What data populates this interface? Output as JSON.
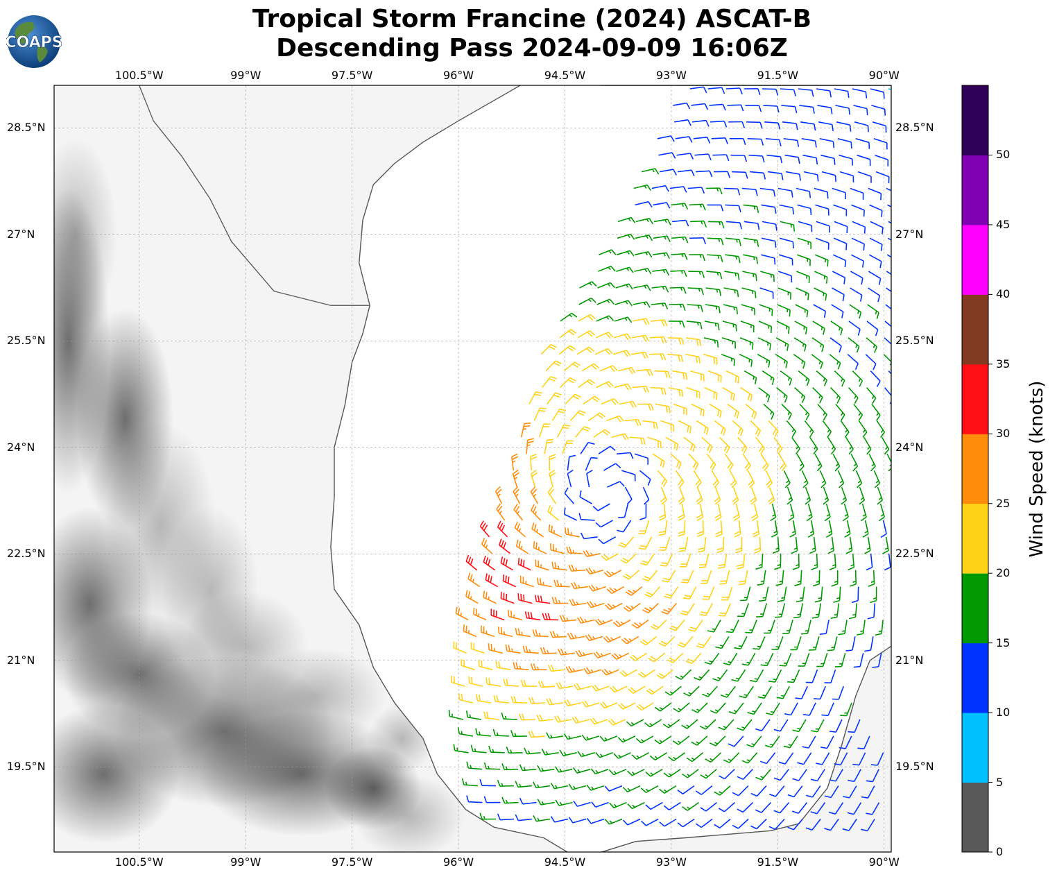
{
  "title": {
    "line1": "Tropical Storm Francine (2024) ASCAT-B",
    "line2": "Descending Pass 2024-09-09 16:06Z"
  },
  "logo": {
    "text": "COAPS",
    "colors": {
      "ocean": "#1b5fa8",
      "land": "#5a8a3c",
      "text": "#ffffff"
    }
  },
  "map": {
    "lon_ticks": [
      "100.5°W",
      "99°W",
      "97.5°W",
      "96°W",
      "94.5°W",
      "93°W",
      "91.5°W",
      "90°W"
    ],
    "lat_ticks": [
      "28.5°N",
      "27°N",
      "25.5°N",
      "24°N",
      "22.5°N",
      "21°N",
      "19.5°N"
    ],
    "lon_range": [
      -101.7,
      -89.9
    ],
    "lat_range": [
      18.3,
      29.1
    ],
    "storm_center": {
      "lon": -93.9,
      "lat": 23.4
    },
    "swath_west_edge": [
      [
        -92.9,
        29.1
      ],
      [
        -93.8,
        27.2
      ],
      [
        -94.9,
        25.3
      ],
      [
        -95.3,
        23.6
      ],
      [
        -95.9,
        22.0
      ],
      [
        -96.0,
        20.0
      ],
      [
        -95.5,
        18.2
      ]
    ]
  },
  "colorbar": {
    "label": "Wind Speed (knots)",
    "ticks": [
      "0",
      "5",
      "10",
      "15",
      "20",
      "25",
      "30",
      "35",
      "40",
      "45",
      "50"
    ],
    "bins": [
      {
        "min": 0,
        "max": 5,
        "color": "#595959"
      },
      {
        "min": 5,
        "max": 10,
        "color": "#00bfff"
      },
      {
        "min": 10,
        "max": 15,
        "color": "#0033ff"
      },
      {
        "min": 15,
        "max": 20,
        "color": "#009900"
      },
      {
        "min": 20,
        "max": 25,
        "color": "#ffd21a"
      },
      {
        "min": 25,
        "max": 30,
        "color": "#ff8c0a"
      },
      {
        "min": 30,
        "max": 35,
        "color": "#ff0f14"
      },
      {
        "min": 35,
        "max": 40,
        "color": "#823a22"
      },
      {
        "min": 40,
        "max": 45,
        "color": "#ff00ff"
      },
      {
        "min": 45,
        "max": 50,
        "color": "#8000b3"
      },
      {
        "min": 50,
        "max": 55,
        "color": "#2f0057"
      }
    ]
  }
}
